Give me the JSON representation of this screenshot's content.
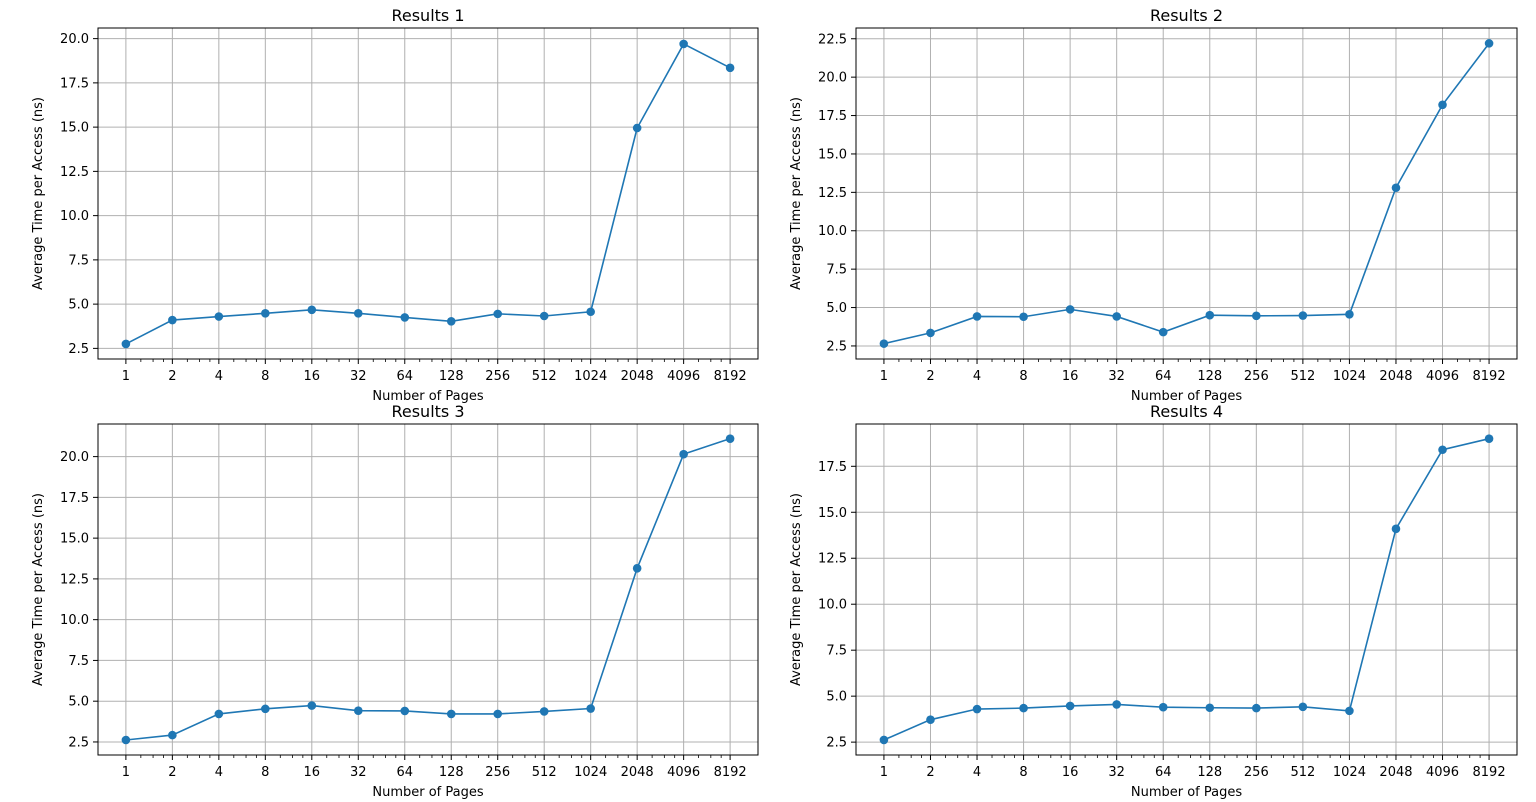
{
  "colors": {
    "series": "#1f77b4",
    "grid": "#b0b0b0",
    "axis": "#000000",
    "background": "#ffffff"
  },
  "chart_data": [
    {
      "type": "line",
      "title": "Results 1",
      "xlabel": "Number of Pages",
      "ylabel": "Average Time per Access (ns)",
      "x_scale": "log2",
      "grid": true,
      "marker": "circle",
      "x": [
        1,
        2,
        4,
        8,
        16,
        32,
        64,
        128,
        256,
        512,
        1024,
        2048,
        4096,
        8192
      ],
      "x_tick_labels": [
        "1",
        "2",
        "4",
        "8",
        "16",
        "32",
        "64",
        "128",
        "256",
        "512",
        "1024",
        "2048",
        "4096",
        "8192"
      ],
      "y": [
        2.75,
        4.1,
        4.3,
        4.48,
        4.68,
        4.48,
        4.25,
        4.03,
        4.45,
        4.33,
        4.57,
        14.95,
        19.7,
        18.35
      ],
      "y_ticks": [
        2.5,
        5.0,
        7.5,
        10.0,
        12.5,
        15.0,
        17.5,
        20.0
      ],
      "y_tick_labels": [
        "2.5",
        "5.0",
        "7.5",
        "10.0",
        "12.5",
        "15.0",
        "17.5",
        "20.0"
      ],
      "ylim": [
        1.9,
        20.6
      ]
    },
    {
      "type": "line",
      "title": "Results 2",
      "xlabel": "Number of Pages",
      "ylabel": "Average Time per Access (ns)",
      "x_scale": "log2",
      "grid": true,
      "marker": "circle",
      "x": [
        1,
        2,
        4,
        8,
        16,
        32,
        64,
        128,
        256,
        512,
        1024,
        2048,
        4096,
        8192
      ],
      "x_tick_labels": [
        "1",
        "2",
        "4",
        "8",
        "16",
        "32",
        "64",
        "128",
        "256",
        "512",
        "1024",
        "2048",
        "4096",
        "8192"
      ],
      "y": [
        2.65,
        3.35,
        4.42,
        4.4,
        4.88,
        4.42,
        3.4,
        4.5,
        4.46,
        4.48,
        4.56,
        12.8,
        18.2,
        22.2
      ],
      "y_ticks": [
        2.5,
        5.0,
        7.5,
        10.0,
        12.5,
        15.0,
        17.5,
        20.0,
        22.5
      ],
      "y_tick_labels": [
        "2.5",
        "5.0",
        "7.5",
        "10.0",
        "12.5",
        "15.0",
        "17.5",
        "20.0",
        "22.5"
      ],
      "ylim": [
        1.65,
        23.2
      ]
    },
    {
      "type": "line",
      "title": "Results 3",
      "xlabel": "Number of Pages",
      "ylabel": "Average Time per Access (ns)",
      "x_scale": "log2",
      "grid": true,
      "marker": "circle",
      "x": [
        1,
        2,
        4,
        8,
        16,
        32,
        64,
        128,
        256,
        512,
        1024,
        2048,
        4096,
        8192
      ],
      "x_tick_labels": [
        "1",
        "2",
        "4",
        "8",
        "16",
        "32",
        "64",
        "128",
        "256",
        "512",
        "1024",
        "2048",
        "4096",
        "8192"
      ],
      "y": [
        2.62,
        2.92,
        4.22,
        4.53,
        4.73,
        4.42,
        4.4,
        4.22,
        4.22,
        4.37,
        4.55,
        13.15,
        20.15,
        21.1
      ],
      "y_ticks": [
        2.5,
        5.0,
        7.5,
        10.0,
        12.5,
        15.0,
        17.5,
        20.0
      ],
      "y_tick_labels": [
        "2.5",
        "5.0",
        "7.5",
        "10.0",
        "12.5",
        "15.0",
        "17.5",
        "20.0"
      ],
      "ylim": [
        1.7,
        22.0
      ]
    },
    {
      "type": "line",
      "title": "Results 4",
      "xlabel": "Number of Pages",
      "ylabel": "Average Time per Access (ns)",
      "x_scale": "log2",
      "grid": true,
      "marker": "circle",
      "x": [
        1,
        2,
        4,
        8,
        16,
        32,
        64,
        128,
        256,
        512,
        1024,
        2048,
        4096,
        8192
      ],
      "x_tick_labels": [
        "1",
        "2",
        "4",
        "8",
        "16",
        "32",
        "64",
        "128",
        "256",
        "512",
        "1024",
        "2048",
        "4096",
        "8192"
      ],
      "y": [
        2.62,
        3.72,
        4.3,
        4.35,
        4.47,
        4.55,
        4.4,
        4.37,
        4.35,
        4.42,
        4.2,
        14.1,
        18.4,
        19.0
      ],
      "y_ticks": [
        2.5,
        5.0,
        7.5,
        10.0,
        12.5,
        15.0,
        17.5
      ],
      "y_tick_labels": [
        "2.5",
        "5.0",
        "7.5",
        "10.0",
        "12.5",
        "15.0",
        "17.5"
      ],
      "ylim": [
        1.8,
        19.8
      ]
    }
  ]
}
